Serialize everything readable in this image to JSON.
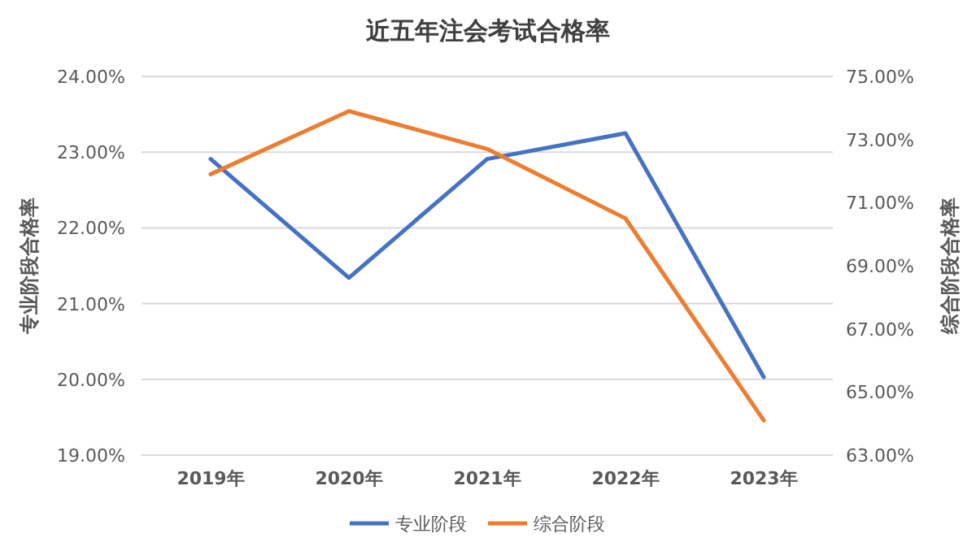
{
  "chart_data": {
    "type": "line",
    "title": "近五年注会考试合格率",
    "ylabel": "专业阶段合格率",
    "y2label": "综合阶段合格率",
    "categories": [
      "2019年",
      "2020年",
      "2021年",
      "2022年",
      "2023年"
    ],
    "series": [
      {
        "name": "专业阶段",
        "color": "#4472c4",
        "values": [
          22.91,
          21.34,
          22.91,
          23.25,
          20.03
        ]
      },
      {
        "name": "综合阶段",
        "color": "#ed7d31",
        "axis": "y2",
        "values": [
          71.9,
          73.9,
          72.7,
          70.5,
          64.1
        ]
      }
    ],
    "ylim": [
      19,
      24
    ],
    "yticks": [
      {
        "value": 19,
        "label": "19.00%"
      },
      {
        "value": 20,
        "label": "20.00%"
      },
      {
        "value": 21,
        "label": "21.00%"
      },
      {
        "value": 22,
        "label": "22.00%"
      },
      {
        "value": 23,
        "label": "23.00%"
      },
      {
        "value": 24,
        "label": "24.00%"
      }
    ],
    "y2lim": [
      63,
      75
    ],
    "y2ticks": [
      {
        "value": 63,
        "label": "63.00%"
      },
      {
        "value": 65,
        "label": "65.00%"
      },
      {
        "value": 67,
        "label": "67.00%"
      },
      {
        "value": 69,
        "label": "69.00%"
      },
      {
        "value": 71,
        "label": "71.00%"
      },
      {
        "value": 73,
        "label": "73.00%"
      },
      {
        "value": 75,
        "label": "75.00%"
      }
    ],
    "grid": "y",
    "legend": "bottom",
    "marker": "none",
    "line_style": "solid"
  }
}
